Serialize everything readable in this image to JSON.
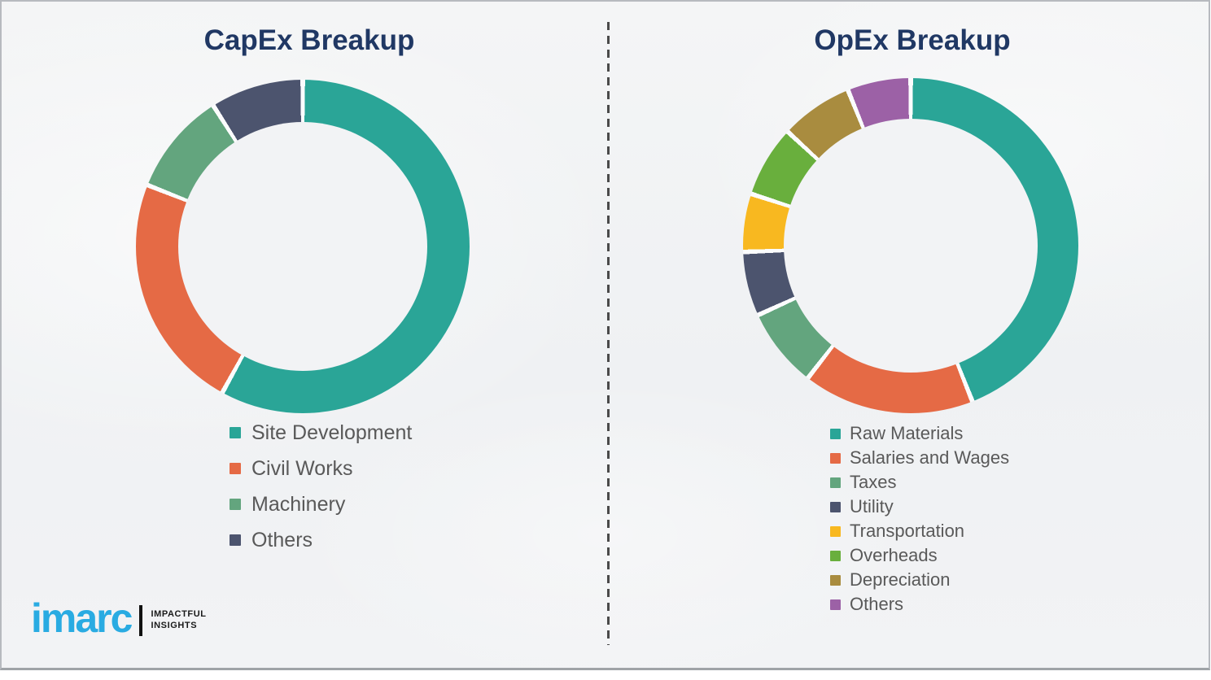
{
  "page": {
    "background_color": "#f1f2f4",
    "divider_color": "#4a4a4a",
    "border_color": "#9fa3a7",
    "title_color": "#203864",
    "legend_text_color": "#595959"
  },
  "chart_data": [
    {
      "id": "capex",
      "type": "pie",
      "subtype": "donut",
      "title": "CapEx Breakup",
      "legend_position": "below-left",
      "labels": [
        "Site Development",
        "Civil Works",
        "Machinery",
        "Others"
      ],
      "values": [
        58,
        23,
        10,
        9
      ],
      "colors": [
        "#2AA597",
        "#E56A45",
        "#63A57E",
        "#4C546E"
      ]
    },
    {
      "id": "opex",
      "type": "pie",
      "subtype": "donut",
      "title": "OpEx Breakup",
      "legend_position": "below-left",
      "labels": [
        "Raw Materials",
        "Salaries and Wages",
        "Taxes",
        "Utility",
        "Transportation",
        "Overheads",
        "Depreciation",
        "Others"
      ],
      "values": [
        44.0,
        16.5,
        7.7,
        6.2,
        5.6,
        6.9,
        7.0,
        6.1
      ],
      "colors": [
        "#2AA597",
        "#E56A45",
        "#63A57E",
        "#4C546E",
        "#F8B820",
        "#69AF3D",
        "#A98C3F",
        "#9C61A6"
      ]
    }
  ],
  "logo": {
    "wordmark": "imarc",
    "tagline_line1": "IMPACTFUL",
    "tagline_line2": "INSIGHTS",
    "wordmark_color": "#29ABE2",
    "tagline_color": "#1a1a1a"
  }
}
